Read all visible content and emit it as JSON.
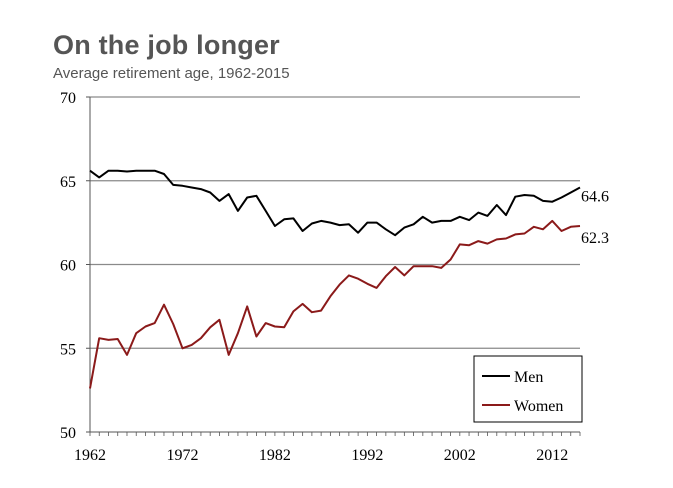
{
  "chart_data": {
    "type": "line",
    "title": "On the job longer",
    "subtitle": "Average retirement age, 1962-2015",
    "xlabel": "",
    "ylabel": "",
    "xlim": [
      1962,
      2015
    ],
    "ylim": [
      50,
      70
    ],
    "x_ticks": [
      1962,
      1972,
      1982,
      1992,
      2002,
      2012
    ],
    "y_ticks": [
      50,
      55,
      60,
      65,
      70
    ],
    "legend_position": "bottom-right",
    "colors": {
      "Men": "#000000",
      "Women": "#8b1a1a"
    },
    "x": [
      1962,
      1963,
      1964,
      1965,
      1966,
      1967,
      1968,
      1969,
      1970,
      1971,
      1972,
      1973,
      1974,
      1975,
      1976,
      1977,
      1978,
      1979,
      1980,
      1981,
      1982,
      1983,
      1984,
      1985,
      1986,
      1987,
      1988,
      1989,
      1990,
      1991,
      1992,
      1993,
      1994,
      1995,
      1996,
      1997,
      1998,
      1999,
      2000,
      2001,
      2002,
      2003,
      2004,
      2005,
      2006,
      2007,
      2008,
      2009,
      2010,
      2011,
      2012,
      2013,
      2014,
      2015
    ],
    "series": [
      {
        "name": "Men",
        "values": [
          65.6,
          65.2,
          65.6,
          65.6,
          65.55,
          65.6,
          65.6,
          65.6,
          65.4,
          64.75,
          64.7,
          64.6,
          64.5,
          64.3,
          63.8,
          64.2,
          63.2,
          64.0,
          64.1,
          63.2,
          62.3,
          62.7,
          62.75,
          62.0,
          62.45,
          62.6,
          62.5,
          62.35,
          62.4,
          61.9,
          62.5,
          62.5,
          62.1,
          61.75,
          62.2,
          62.4,
          62.85,
          62.5,
          62.6,
          62.6,
          62.85,
          62.65,
          63.1,
          62.9,
          63.55,
          62.95,
          64.05,
          64.15,
          64.1,
          63.8,
          63.75,
          64.0,
          64.3,
          64.6
        ],
        "end_label": "64.6"
      },
      {
        "name": "Women",
        "values": [
          52.6,
          55.6,
          55.5,
          55.55,
          54.6,
          55.9,
          56.3,
          56.5,
          57.6,
          56.45,
          55.0,
          55.2,
          55.6,
          56.25,
          56.7,
          54.6,
          55.9,
          57.5,
          55.7,
          56.5,
          56.3,
          56.25,
          57.2,
          57.65,
          57.15,
          57.25,
          58.1,
          58.8,
          59.35,
          59.15,
          58.85,
          58.6,
          59.3,
          59.85,
          59.35,
          59.9,
          59.9,
          59.9,
          59.8,
          60.3,
          61.2,
          61.15,
          61.4,
          61.25,
          61.5,
          61.55,
          61.8,
          61.85,
          62.25,
          62.1,
          62.6,
          62.0,
          62.25,
          62.3
        ],
        "end_label": "62.3"
      }
    ]
  }
}
